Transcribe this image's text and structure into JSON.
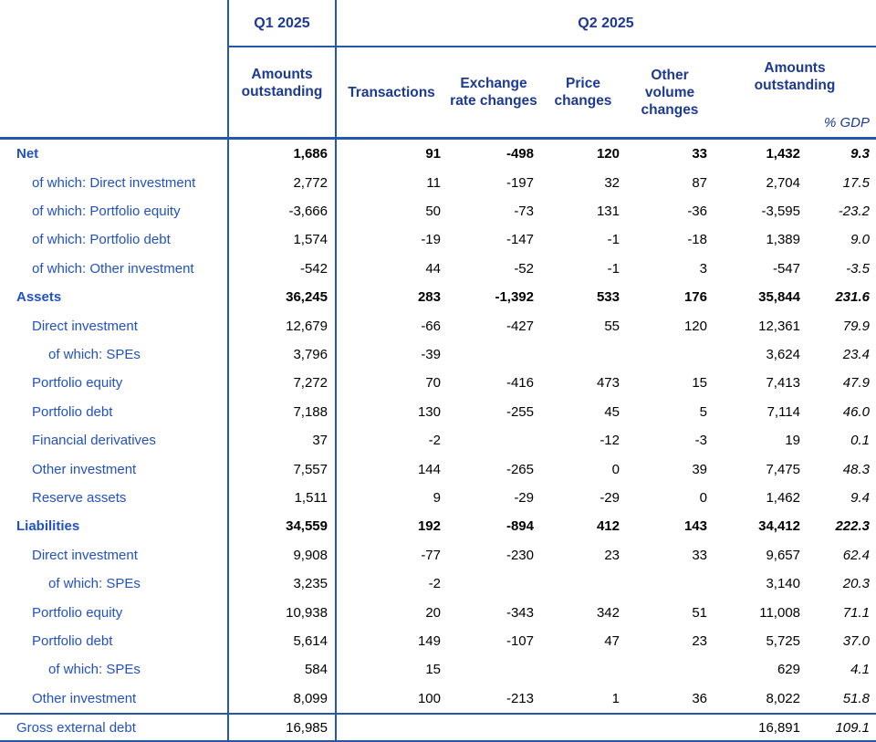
{
  "header": {
    "q1_period": "Q1 2025",
    "q2_period": "Q2 2025",
    "q1_sub": "Amounts outstanding",
    "q2_cols": [
      "Transactions",
      "Exchange rate changes",
      "Price changes",
      "Other volume changes",
      "Amounts outstanding"
    ],
    "gdp_label": "% GDP"
  },
  "colors": {
    "header_text": "#1c3994",
    "row_label_text": "#2151c3",
    "rule_lines": "#2458a8",
    "numbers": "#000000",
    "background": "#ffffff"
  },
  "table": {
    "column_keys": [
      "q1_amounts_outstanding",
      "transactions",
      "exchange_rate_changes",
      "price_changes",
      "other_volume_changes",
      "amounts_outstanding",
      "pct_gdp"
    ],
    "rows": [
      {
        "label": "Net",
        "indent": 0,
        "bold": true,
        "values": [
          "1,686",
          "91",
          "-498",
          "120",
          "33",
          "1,432",
          "9.3"
        ]
      },
      {
        "label": "of which: Direct investment",
        "indent": 1,
        "bold": false,
        "values": [
          "2,772",
          "11",
          "-197",
          "32",
          "87",
          "2,704",
          "17.5"
        ]
      },
      {
        "label": "of which: Portfolio equity",
        "indent": 1,
        "bold": false,
        "values": [
          "-3,666",
          "50",
          "-73",
          "131",
          "-36",
          "-3,595",
          "-23.2"
        ]
      },
      {
        "label": "of which: Portfolio debt",
        "indent": 1,
        "bold": false,
        "values": [
          "1,574",
          "-19",
          "-147",
          "-1",
          "-18",
          "1,389",
          "9.0"
        ]
      },
      {
        "label": "of which: Other investment",
        "indent": 1,
        "bold": false,
        "values": [
          "-542",
          "44",
          "-52",
          "-1",
          "3",
          "-547",
          "-3.5"
        ]
      },
      {
        "label": "Assets",
        "indent": 0,
        "bold": true,
        "values": [
          "36,245",
          "283",
          "-1,392",
          "533",
          "176",
          "35,844",
          "231.6"
        ]
      },
      {
        "label": "Direct investment",
        "indent": 1,
        "bold": false,
        "values": [
          "12,679",
          "-66",
          "-427",
          "55",
          "120",
          "12,361",
          "79.9"
        ]
      },
      {
        "label": "of which: SPEs",
        "indent": 2,
        "bold": false,
        "values": [
          "3,796",
          "-39",
          "",
          "",
          "",
          "3,624",
          "23.4"
        ]
      },
      {
        "label": "Portfolio equity",
        "indent": 1,
        "bold": false,
        "values": [
          "7,272",
          "70",
          "-416",
          "473",
          "15",
          "7,413",
          "47.9"
        ]
      },
      {
        "label": "Portfolio debt",
        "indent": 1,
        "bold": false,
        "values": [
          "7,188",
          "130",
          "-255",
          "45",
          "5",
          "7,114",
          "46.0"
        ]
      },
      {
        "label": "Financial derivatives",
        "indent": 1,
        "bold": false,
        "values": [
          "37",
          "-2",
          "",
          "-12",
          "-3",
          "19",
          "0.1"
        ]
      },
      {
        "label": "Other investment",
        "indent": 1,
        "bold": false,
        "values": [
          "7,557",
          "144",
          "-265",
          "0",
          "39",
          "7,475",
          "48.3"
        ]
      },
      {
        "label": "Reserve assets",
        "indent": 1,
        "bold": false,
        "values": [
          "1,511",
          "9",
          "-29",
          "-29",
          "0",
          "1,462",
          "9.4"
        ]
      },
      {
        "label": "Liabilities",
        "indent": 0,
        "bold": true,
        "values": [
          "34,559",
          "192",
          "-894",
          "412",
          "143",
          "34,412",
          "222.3"
        ]
      },
      {
        "label": "Direct investment",
        "indent": 1,
        "bold": false,
        "values": [
          "9,908",
          "-77",
          "-230",
          "23",
          "33",
          "9,657",
          "62.4"
        ]
      },
      {
        "label": "of which: SPEs",
        "indent": 2,
        "bold": false,
        "values": [
          "3,235",
          "-2",
          "",
          "",
          "",
          "3,140",
          "20.3"
        ]
      },
      {
        "label": "Portfolio equity",
        "indent": 1,
        "bold": false,
        "values": [
          "10,938",
          "20",
          "-343",
          "342",
          "51",
          "11,008",
          "71.1"
        ]
      },
      {
        "label": "Portfolio debt",
        "indent": 1,
        "bold": false,
        "values": [
          "5,614",
          "149",
          "-107",
          "47",
          "23",
          "5,725",
          "37.0"
        ]
      },
      {
        "label": "of which: SPEs",
        "indent": 2,
        "bold": false,
        "values": [
          "584",
          "15",
          "",
          "",
          "",
          "629",
          "4.1"
        ]
      },
      {
        "label": "Other investment",
        "indent": 1,
        "bold": false,
        "values": [
          "8,099",
          "100",
          "-213",
          "1",
          "36",
          "8,022",
          "51.8"
        ]
      }
    ],
    "footer_row": {
      "label": "Gross external debt",
      "indent": 0,
      "bold": false,
      "values": [
        "16,985",
        "",
        "",
        "",
        "",
        "16,891",
        "109.1"
      ]
    }
  }
}
